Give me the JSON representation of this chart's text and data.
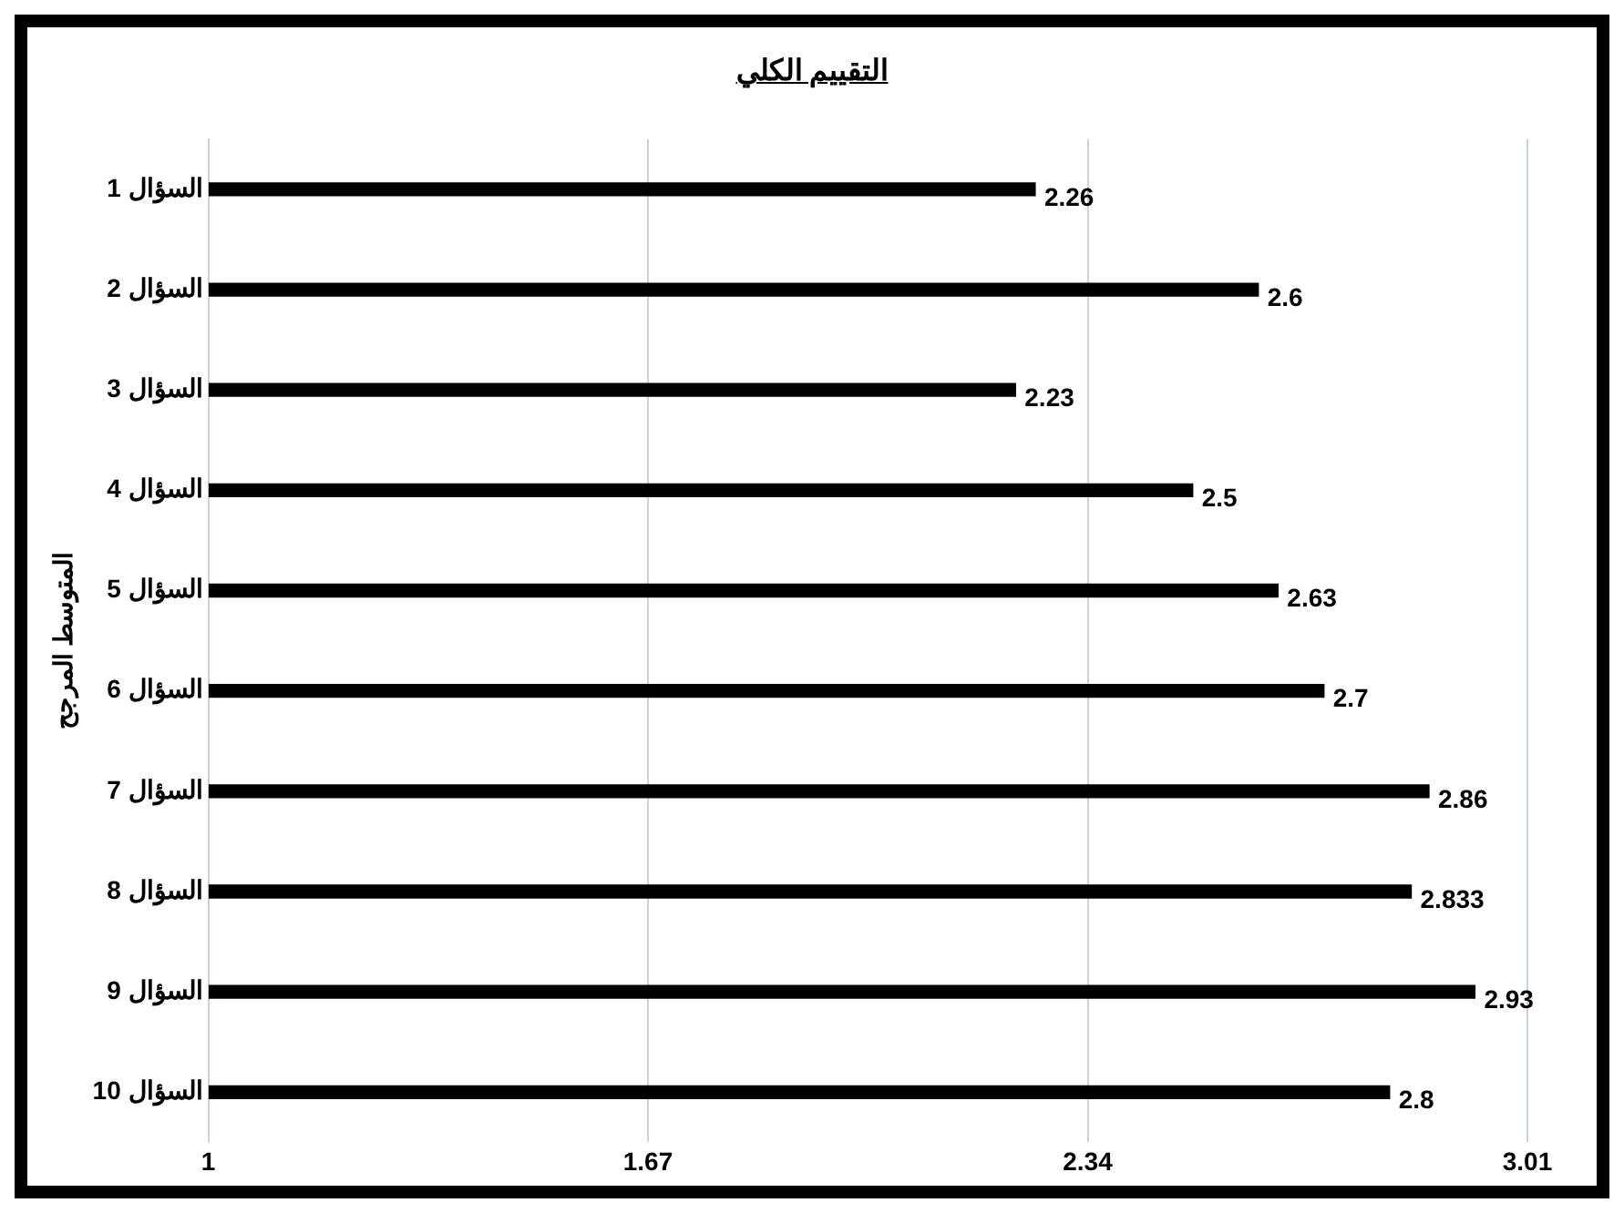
{
  "chart_data": {
    "type": "bar",
    "orientation": "horizontal",
    "title": "التقييم الكلي",
    "ylabel": "المتوسط المرجح",
    "categories": [
      "السؤال 1",
      "السؤال 2",
      "السؤال 3",
      "السؤال 4",
      "السؤال 5",
      "السؤال 6",
      "السؤال 7",
      "السؤال 8",
      "السؤال 9",
      "السؤال 10"
    ],
    "values": [
      2.26,
      2.6,
      2.23,
      2.5,
      2.63,
      2.7,
      2.86,
      2.833,
      2.93,
      2.8
    ],
    "color": "#000000",
    "xlim": [
      1,
      3.01
    ],
    "xticks": [
      1,
      1.67,
      2.34,
      3.01
    ],
    "grid": "x",
    "data_labels": true
  }
}
